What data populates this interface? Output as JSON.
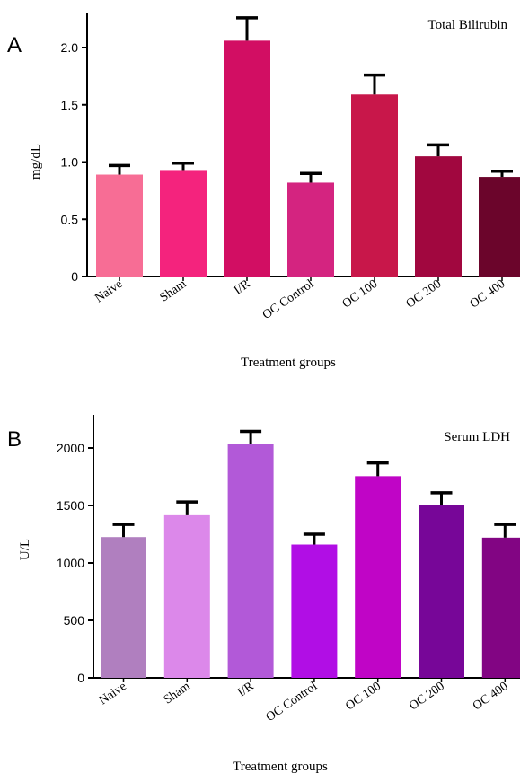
{
  "chart_data": [
    {
      "panel_label": "A",
      "type": "bar",
      "title": "Total Bilirubin",
      "xlabel": "Treatment groups",
      "ylabel": "mg/dL",
      "ylim": [
        0,
        2.3
      ],
      "yticks": [
        "0",
        "0.5",
        "1.0",
        "1.5",
        "2.0"
      ],
      "ytick_values": [
        0,
        0.5,
        1.0,
        1.5,
        2.0
      ],
      "categories": [
        "Naive",
        "Sham",
        "I/R",
        "OC Control",
        "OC 100",
        "OC 200",
        "OC 400"
      ],
      "values": [
        0.89,
        0.93,
        2.06,
        0.82,
        1.59,
        1.05,
        0.87
      ],
      "errors": [
        0.08,
        0.06,
        0.2,
        0.08,
        0.17,
        0.1,
        0.05
      ],
      "colors": [
        "#f76d95",
        "#f4237d",
        "#d20e63",
        "#d42480",
        "#c8174a",
        "#a1073f",
        "#6b052b"
      ],
      "grid": false,
      "legend": "none"
    },
    {
      "panel_label": "B",
      "type": "bar",
      "title": "Serum LDH",
      "xlabel": "Treatment groups",
      "ylabel": "U/L",
      "ylim": [
        0,
        2300
      ],
      "yticks": [
        "0",
        "500",
        "1000",
        "1500",
        "2000"
      ],
      "ytick_values": [
        0,
        500,
        1000,
        1500,
        2000
      ],
      "categories": [
        "Naive",
        "Sham",
        "I/R",
        "OC Control",
        "OC 100",
        "OC 200",
        "OC 400"
      ],
      "values": [
        1225,
        1415,
        2035,
        1160,
        1755,
        1500,
        1220
      ],
      "errors": [
        110,
        115,
        110,
        90,
        115,
        110,
        115
      ],
      "colors": [
        "#b07fbf",
        "#dc88ea",
        "#b259d8",
        "#b10ee5",
        "#c005c6",
        "#770698",
        "#820583"
      ],
      "grid": false,
      "legend": "none"
    }
  ]
}
